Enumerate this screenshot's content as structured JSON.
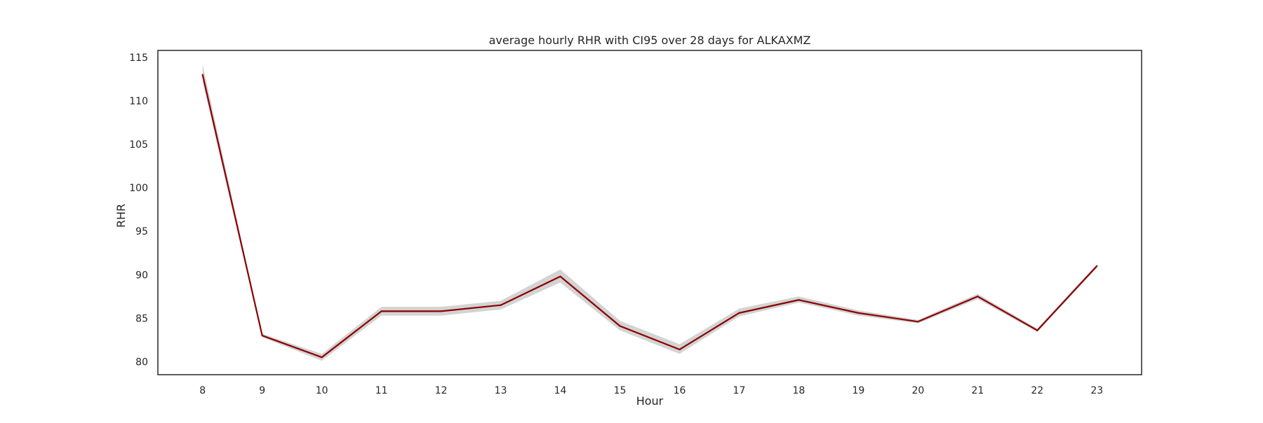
{
  "chart_data": {
    "type": "line",
    "title": "average hourly RHR with CI95 over 28 days for ALKAXMZ",
    "xlabel": "Hour",
    "ylabel": "RHR",
    "x": [
      8,
      9,
      10,
      11,
      12,
      13,
      14,
      15,
      16,
      17,
      18,
      19,
      20,
      21,
      22,
      23
    ],
    "xlim": [
      7.25,
      23.75
    ],
    "ylim": [
      78.5,
      115.8
    ],
    "yticks": [
      80,
      85,
      90,
      95,
      100,
      105,
      110,
      115
    ],
    "grid": false,
    "series": [
      {
        "values": [
          113.0,
          83.0,
          80.5,
          85.8,
          85.8,
          86.5,
          89.8,
          84.1,
          81.4,
          85.6,
          87.1,
          85.6,
          84.6,
          87.5,
          83.6,
          91.0
        ],
        "ci_lower": [
          112.2,
          82.8,
          80.1,
          85.3,
          85.3,
          86.0,
          89.1,
          83.6,
          80.9,
          85.2,
          86.8,
          85.3,
          84.4,
          87.2,
          83.4,
          90.8
        ],
        "ci_upper": [
          114.2,
          83.2,
          80.9,
          86.3,
          86.3,
          87.0,
          90.6,
          84.7,
          82.0,
          86.1,
          87.5,
          85.9,
          84.8,
          87.8,
          83.8,
          91.2
        ],
        "color": "#8b0000",
        "ci_color": "#d3d3d3"
      }
    ]
  }
}
